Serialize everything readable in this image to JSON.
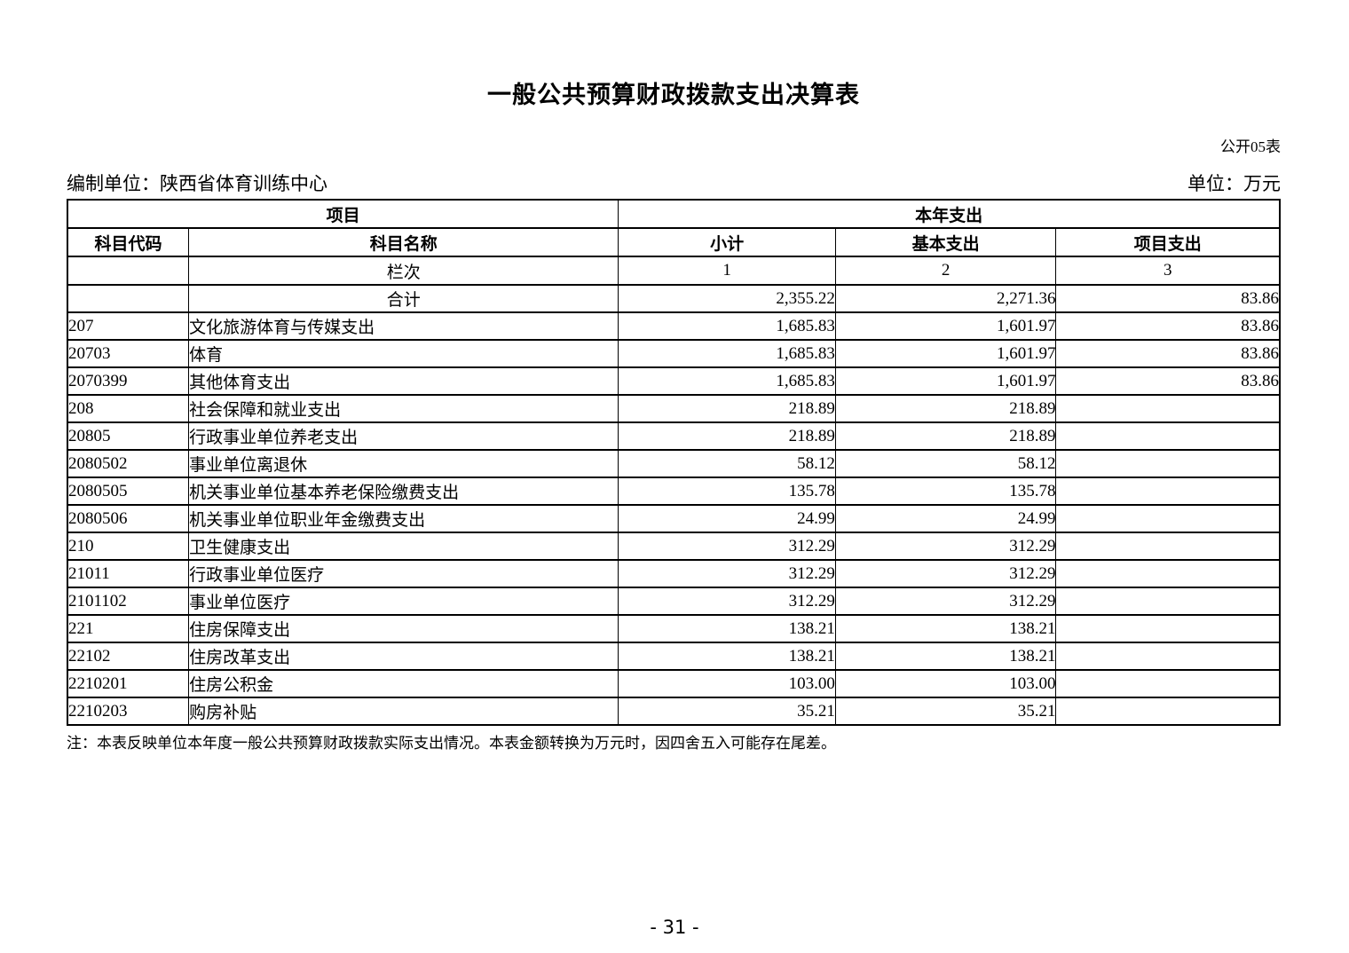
{
  "page": {
    "title": "一般公共预算财政拨款支出决算表",
    "form_code": "公开05表",
    "prepared_by_label": "编制单位：陕西省体育训练中心",
    "unit_label": "单位：万元",
    "note": "注：本表反映单位本年度一般公共预算财政拨款实际支出情况。本表金额转换为万元时，因四舍五入可能存在尾差。",
    "page_number": "- 31 -"
  },
  "table": {
    "header": {
      "group_left": "项目",
      "group_right": "本年支出",
      "col_code": "科目代码",
      "col_name": "科目名称",
      "col_subtotal": "小计",
      "col_basic": "基本支出",
      "col_project": "项目支出",
      "lanci_label": "栏次",
      "lanci_cols": [
        "1",
        "2",
        "3"
      ]
    },
    "rows": [
      {
        "code": "",
        "name": "合计",
        "name_align": "center",
        "subtotal": "2,355.22",
        "basic": "2,271.36",
        "project": "83.86"
      },
      {
        "code": "207",
        "name": "文化旅游体育与传媒支出",
        "name_align": "left",
        "subtotal": "1,685.83",
        "basic": "1,601.97",
        "project": "83.86"
      },
      {
        "code": "20703",
        "name": "体育",
        "name_align": "left",
        "subtotal": "1,685.83",
        "basic": "1,601.97",
        "project": "83.86"
      },
      {
        "code": "2070399",
        "name": "其他体育支出",
        "name_align": "left",
        "subtotal": "1,685.83",
        "basic": "1,601.97",
        "project": "83.86"
      },
      {
        "code": "208",
        "name": "社会保障和就业支出",
        "name_align": "left",
        "subtotal": "218.89",
        "basic": "218.89",
        "project": ""
      },
      {
        "code": "20805",
        "name": "行政事业单位养老支出",
        "name_align": "left",
        "subtotal": "218.89",
        "basic": "218.89",
        "project": ""
      },
      {
        "code": "2080502",
        "name": "事业单位离退休",
        "name_align": "left",
        "subtotal": "58.12",
        "basic": "58.12",
        "project": ""
      },
      {
        "code": "2080505",
        "name": "机关事业单位基本养老保险缴费支出",
        "name_align": "left",
        "subtotal": "135.78",
        "basic": "135.78",
        "project": ""
      },
      {
        "code": "2080506",
        "name": "机关事业单位职业年金缴费支出",
        "name_align": "left",
        "subtotal": "24.99",
        "basic": "24.99",
        "project": ""
      },
      {
        "code": "210",
        "name": "卫生健康支出",
        "name_align": "left",
        "subtotal": "312.29",
        "basic": "312.29",
        "project": ""
      },
      {
        "code": "21011",
        "name": "行政事业单位医疗",
        "name_align": "left",
        "subtotal": "312.29",
        "basic": "312.29",
        "project": ""
      },
      {
        "code": "2101102",
        "name": "事业单位医疗",
        "name_align": "left",
        "subtotal": "312.29",
        "basic": "312.29",
        "project": ""
      },
      {
        "code": "221",
        "name": "住房保障支出",
        "name_align": "left",
        "subtotal": "138.21",
        "basic": "138.21",
        "project": ""
      },
      {
        "code": "22102",
        "name": "住房改革支出",
        "name_align": "left",
        "subtotal": "138.21",
        "basic": "138.21",
        "project": ""
      },
      {
        "code": "2210201",
        "name": "住房公积金",
        "name_align": "left",
        "subtotal": "103.00",
        "basic": "103.00",
        "project": ""
      },
      {
        "code": "2210203",
        "name": "购房补贴",
        "name_align": "left",
        "subtotal": "35.21",
        "basic": "35.21",
        "project": ""
      }
    ]
  }
}
